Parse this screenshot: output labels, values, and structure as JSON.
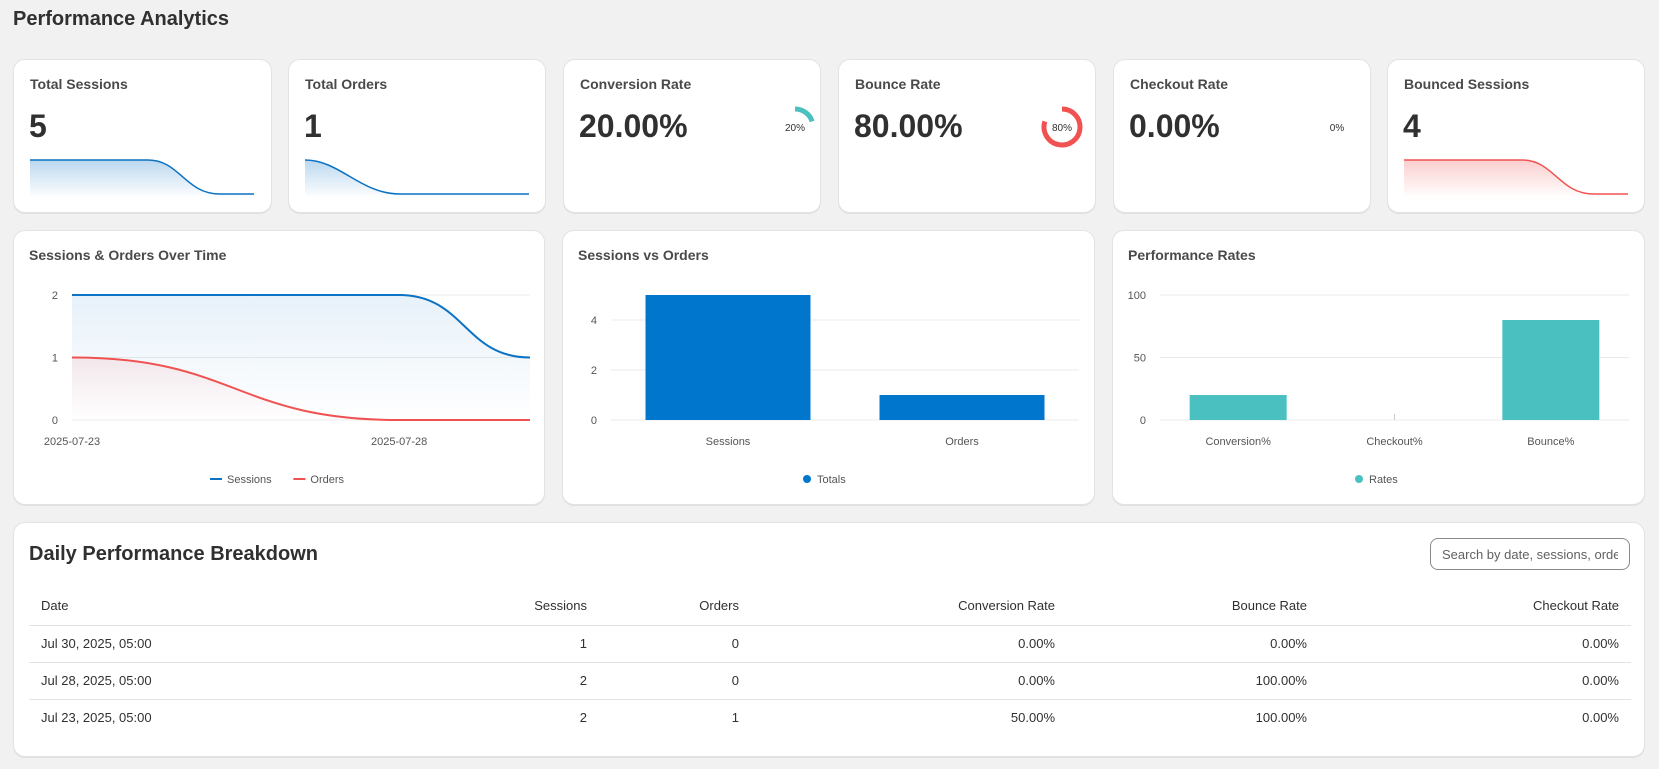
{
  "page": {
    "title": "Performance Analytics"
  },
  "kpis": [
    {
      "title": "Total Sessions",
      "value": "5"
    },
    {
      "title": "Total Orders",
      "value": "1"
    },
    {
      "title": "Conversion Rate",
      "value": "20.00%",
      "gauge_label": "20%",
      "gauge_percent": 20,
      "gauge_color": "#4bc0c0"
    },
    {
      "title": "Bounce Rate",
      "value": "80.00%",
      "gauge_label": "80%",
      "gauge_percent": 80,
      "gauge_color": "#f05252"
    },
    {
      "title": "Checkout Rate",
      "value": "0.00%",
      "gauge_label": "0%",
      "gauge_percent": 0,
      "gauge_color": "#4bc0c0"
    },
    {
      "title": "Bounced Sessions",
      "value": "4"
    }
  ],
  "charts": {
    "line_title": "Sessions & Orders Over Time",
    "bar_title": "Sessions vs Orders",
    "rates_title": "Performance Rates"
  },
  "chart_data": [
    {
      "type": "line",
      "title": "Sessions & Orders Over Time",
      "x": [
        "2025-07-23",
        "2025-07-28",
        "2025-07-30"
      ],
      "x_tick_labels": [
        "2025-07-23",
        "2025-07-28"
      ],
      "series": [
        {
          "name": "Sessions",
          "values": [
            2,
            2,
            1
          ],
          "color": "#0b72c4"
        },
        {
          "name": "Orders",
          "values": [
            1,
            0,
            0
          ],
          "color": "#f05252"
        }
      ],
      "ylim": [
        0,
        2
      ],
      "y_ticks": [
        "0",
        "1",
        "2"
      ],
      "grid": true,
      "legend": "bottom"
    },
    {
      "type": "bar",
      "title": "Sessions vs Orders",
      "categories": [
        "Sessions",
        "Orders"
      ],
      "series": [
        {
          "name": "Totals",
          "values": [
            5,
            1
          ],
          "color": "#0077cc"
        }
      ],
      "ylim": [
        0,
        5
      ],
      "y_ticks": [
        "0",
        "2",
        "4"
      ],
      "grid": true,
      "legend": "bottom"
    },
    {
      "type": "bar",
      "title": "Performance Rates",
      "categories": [
        "Conversion%",
        "Checkout%",
        "Bounce%"
      ],
      "series": [
        {
          "name": "Rates",
          "values": [
            20,
            0,
            80
          ],
          "color": "#4bc0c0"
        }
      ],
      "ylim": [
        0,
        100
      ],
      "y_ticks": [
        "0",
        "50",
        "100"
      ],
      "grid": true,
      "legend": "bottom"
    }
  ],
  "table": {
    "title": "Daily Performance Breakdown",
    "search_placeholder": "Search by date, sessions, orders",
    "columns": [
      "Date",
      "Sessions",
      "Orders",
      "Conversion Rate",
      "Bounce Rate",
      "Checkout Rate"
    ],
    "rows": [
      [
        "Jul 30, 2025, 05:00",
        "1",
        "0",
        "0.00%",
        "0.00%",
        "0.00%"
      ],
      [
        "Jul 28, 2025, 05:00",
        "2",
        "0",
        "0.00%",
        "100.00%",
        "0.00%"
      ],
      [
        "Jul 23, 2025, 05:00",
        "2",
        "1",
        "50.00%",
        "100.00%",
        "0.00%"
      ]
    ]
  }
}
